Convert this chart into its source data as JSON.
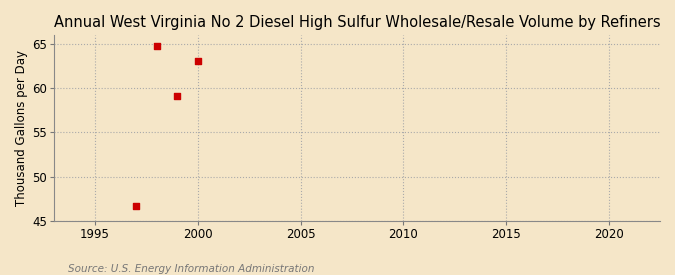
{
  "title": "Annual West Virginia No 2 Diesel High Sulfur Wholesale/Resale Volume by Refiners",
  "ylabel": "Thousand Gallons per Day",
  "source": "Source: U.S. Energy Information Administration",
  "background_color": "#f5e6c8",
  "plot_background_color": "#f5e6c8",
  "x_data": [
    1997,
    1998,
    1999,
    2000
  ],
  "y_data": [
    46.7,
    64.8,
    59.1,
    63.1
  ],
  "marker_color": "#cc0000",
  "marker_size": 4,
  "xlim": [
    1993,
    2022.5
  ],
  "ylim": [
    45,
    66
  ],
  "xticks": [
    1995,
    2000,
    2005,
    2010,
    2015,
    2020
  ],
  "yticks": [
    45,
    50,
    55,
    60,
    65
  ],
  "grid_color": "#aaaaaa",
  "grid_linestyle": ":",
  "title_fontsize": 10.5,
  "label_fontsize": 8.5,
  "tick_fontsize": 8.5,
  "source_fontsize": 7.5
}
